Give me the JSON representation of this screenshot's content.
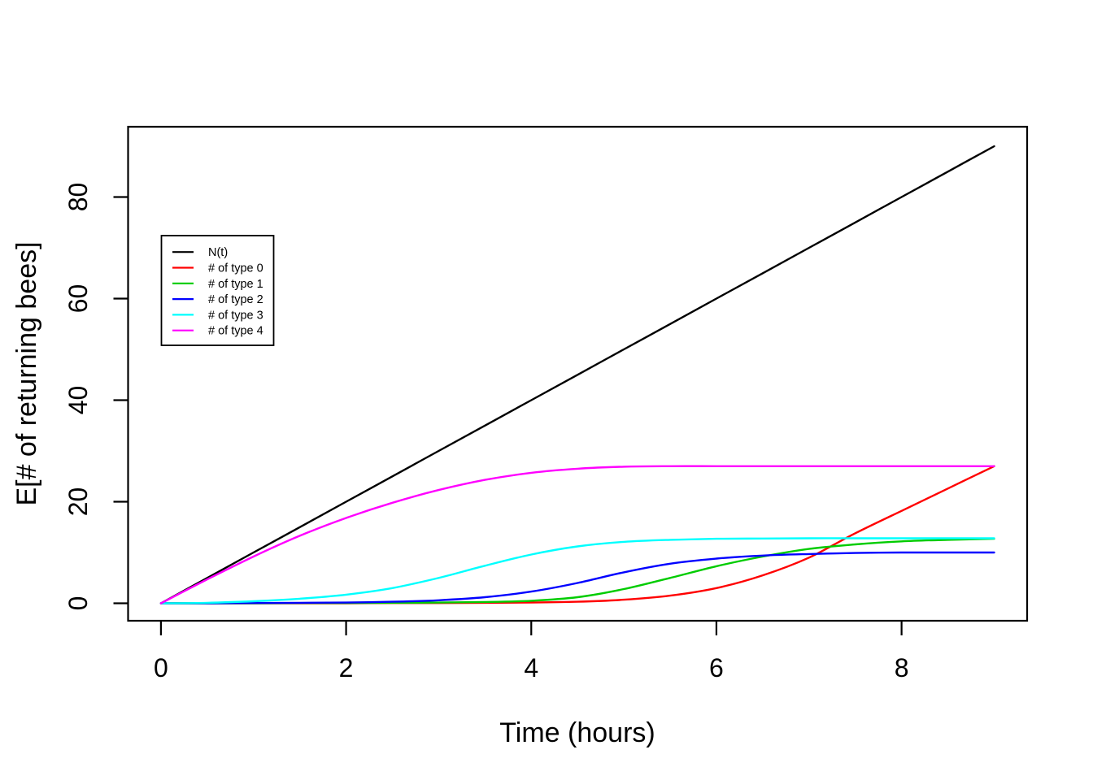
{
  "chart_data": {
    "type": "line",
    "title": "",
    "xlabel": "Time (hours)",
    "ylabel": "E[# of returning bees]",
    "x_ticks": [
      0,
      2,
      4,
      6,
      8
    ],
    "y_ticks": [
      0,
      20,
      40,
      60,
      80
    ],
    "xlim": [
      0,
      9
    ],
    "ylim": [
      0,
      90
    ],
    "grid": false,
    "legend_position": "upper-left-inside",
    "x": [
      0,
      0.5,
      1,
      1.5,
      2,
      2.5,
      3,
      3.5,
      4,
      4.5,
      5,
      5.5,
      6,
      6.5,
      7,
      7.5,
      8,
      8.5,
      9
    ],
    "series": [
      {
        "name": "N(t)",
        "color": "#000000",
        "values": [
          0,
          5,
          10,
          15,
          20,
          25,
          30,
          35,
          40,
          45,
          50,
          55,
          60,
          65,
          70,
          75,
          80,
          85,
          90
        ]
      },
      {
        "name": "# of type 0",
        "color": "#FF0000",
        "values": [
          0,
          0,
          0,
          0,
          0,
          0.05,
          0.05,
          0.1,
          0.15,
          0.3,
          0.7,
          1.5,
          3.0,
          5.5,
          9.0,
          13.8,
          18.2,
          22.6,
          27
        ]
      },
      {
        "name": "# of type 1",
        "color": "#00CC00",
        "values": [
          0,
          0,
          0,
          0.05,
          0.05,
          0.1,
          0.15,
          0.25,
          0.5,
          1.2,
          2.8,
          5.0,
          7.3,
          9.2,
          10.7,
          11.6,
          12.2,
          12.5,
          12.7
        ]
      },
      {
        "name": "# of type 2",
        "color": "#0000FF",
        "values": [
          0,
          0,
          0.05,
          0.1,
          0.15,
          0.3,
          0.6,
          1.2,
          2.3,
          4.0,
          6.1,
          7.8,
          8.8,
          9.4,
          9.7,
          9.9,
          10,
          10,
          10
        ]
      },
      {
        "name": "# of type 3",
        "color": "#00FFFF",
        "values": [
          0,
          0.1,
          0.4,
          0.9,
          1.7,
          3.0,
          5.0,
          7.4,
          9.6,
          11.2,
          12.1,
          12.5,
          12.7,
          12.75,
          12.8,
          12.8,
          12.8,
          12.8,
          12.8
        ]
      },
      {
        "name": "# of type 4",
        "color": "#FF00FF",
        "values": [
          0,
          4.7,
          9.2,
          13.3,
          16.8,
          19.8,
          22.3,
          24.3,
          25.7,
          26.5,
          26.9,
          27,
          27,
          27,
          27,
          27,
          27,
          27,
          27
        ]
      }
    ]
  },
  "colors": {
    "background": "#FFFFFF",
    "axis": "#000000",
    "legend_border": "#000000"
  }
}
